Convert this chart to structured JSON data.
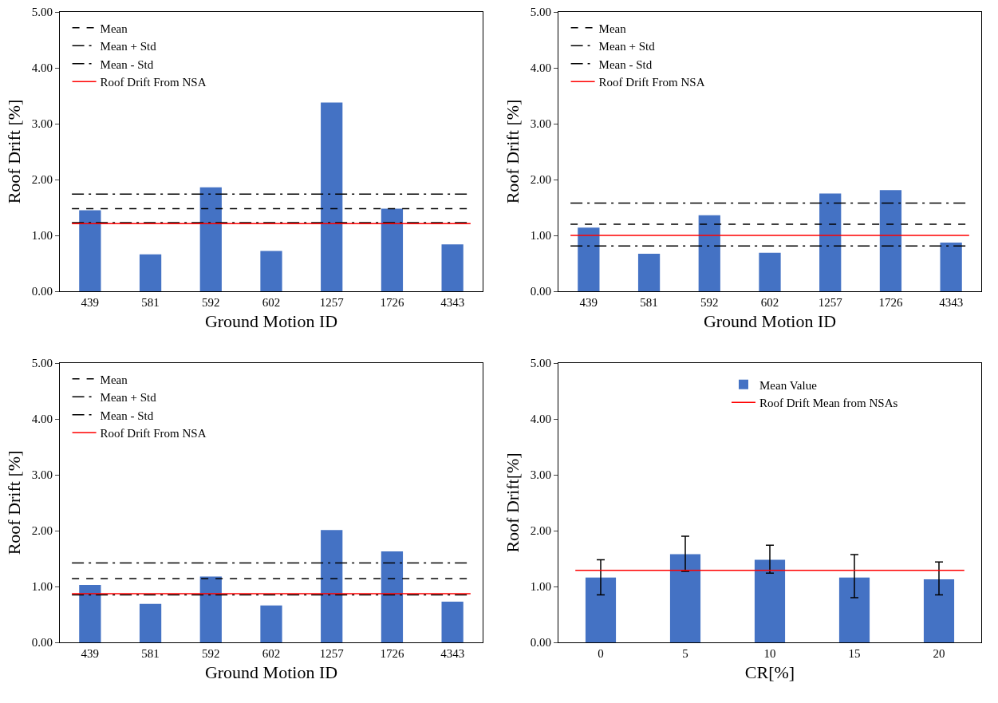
{
  "chart_data": [
    {
      "type": "bar",
      "xlabel": "Ground Motion ID",
      "ylabel": "Roof Drift [%]",
      "categories": [
        "439",
        "581",
        "592",
        "602",
        "1257",
        "1726",
        "4343"
      ],
      "values": [
        1.45,
        0.66,
        1.86,
        0.72,
        3.38,
        1.48,
        0.84
      ],
      "color": "#4472c4",
      "ylim": [
        0,
        5
      ],
      "yticks": [
        {
          "value": 0,
          "label": "0.00"
        },
        {
          "value": 1,
          "label": "1.00"
        },
        {
          "value": 2,
          "label": "2.00"
        },
        {
          "value": 3,
          "label": "3.00"
        },
        {
          "value": 4,
          "label": "4.00"
        },
        {
          "value": 5,
          "label": "5.00"
        }
      ],
      "grid": false,
      "legend": "top left",
      "ref_lines": [
        {
          "axis": "y",
          "value": 1.48,
          "label": "Mean",
          "color": "#000000",
          "line_style": "dashed"
        },
        {
          "axis": "y",
          "value": 1.74,
          "label": "Mean + Std",
          "color": "#000000",
          "line_style": "dashdot"
        },
        {
          "axis": "y",
          "value": 1.23,
          "label": "Mean - Std",
          "color": "#000000",
          "line_style": "dashdot"
        },
        {
          "axis": "y",
          "value": 1.21,
          "label": "Roof Drift From NSA",
          "color": "#ff0000",
          "line_style": "solid"
        }
      ]
    },
    {
      "type": "bar",
      "xlabel": "Ground Motion ID",
      "ylabel": "Roof Drift [%]",
      "categories": [
        "439",
        "581",
        "592",
        "602",
        "1257",
        "1726",
        "4343"
      ],
      "values": [
        1.14,
        0.67,
        1.36,
        0.69,
        1.75,
        1.81,
        0.87
      ],
      "color": "#4472c4",
      "ylim": [
        0,
        5
      ],
      "yticks": [
        {
          "value": 0,
          "label": "0.00"
        },
        {
          "value": 1,
          "label": "1.00"
        },
        {
          "value": 2,
          "label": "2.00"
        },
        {
          "value": 3,
          "label": "3.00"
        },
        {
          "value": 4,
          "label": "4.00"
        },
        {
          "value": 5,
          "label": "5.00"
        }
      ],
      "grid": false,
      "legend": "top left",
      "ref_lines": [
        {
          "axis": "y",
          "value": 1.2,
          "label": "Mean",
          "color": "#000000",
          "line_style": "dashed"
        },
        {
          "axis": "y",
          "value": 1.58,
          "label": "Mean + Std",
          "color": "#000000",
          "line_style": "dashdot"
        },
        {
          "axis": "y",
          "value": 0.81,
          "label": "Mean - Std",
          "color": "#000000",
          "line_style": "dashdot"
        },
        {
          "axis": "y",
          "value": 1.0,
          "label": "Roof Drift From NSA",
          "color": "#ff0000",
          "line_style": "solid"
        }
      ]
    },
    {
      "type": "bar",
      "xlabel": "Ground Motion ID",
      "ylabel": "Roof Drift [%]",
      "categories": [
        "439",
        "581",
        "592",
        "602",
        "1257",
        "1726",
        "4343"
      ],
      "values": [
        1.03,
        0.69,
        1.18,
        0.66,
        2.01,
        1.63,
        0.73
      ],
      "color": "#4472c4",
      "ylim": [
        0,
        5
      ],
      "yticks": [
        {
          "value": 0,
          "label": "0.00"
        },
        {
          "value": 1,
          "label": "1.00"
        },
        {
          "value": 2,
          "label": "2.00"
        },
        {
          "value": 3,
          "label": "3.00"
        },
        {
          "value": 4,
          "label": "4.00"
        },
        {
          "value": 5,
          "label": "5.00"
        }
      ],
      "grid": false,
      "legend": "top left",
      "ref_lines": [
        {
          "axis": "y",
          "value": 1.14,
          "label": "Mean",
          "color": "#000000",
          "line_style": "dashed"
        },
        {
          "axis": "y",
          "value": 1.42,
          "label": "Mean + Std",
          "color": "#000000",
          "line_style": "dashdot"
        },
        {
          "axis": "y",
          "value": 0.85,
          "label": "Mean - Std",
          "color": "#000000",
          "line_style": "dashdot"
        },
        {
          "axis": "y",
          "value": 0.87,
          "label": "Roof Drift From NSA",
          "color": "#ff0000",
          "line_style": "solid"
        }
      ]
    },
    {
      "type": "bar",
      "xlabel": "CR[%]",
      "ylabel": "Roof Drift[%]",
      "categories": [
        "0",
        "5",
        "10",
        "15",
        "20"
      ],
      "series": [
        {
          "name": "Mean Value",
          "color": "#4472c4",
          "values": [
            1.16,
            1.58,
            1.48,
            1.16,
            1.13
          ],
          "errors": [
            [
              0.85,
              1.48
            ],
            [
              1.27,
              1.9
            ],
            [
              1.24,
              1.74
            ],
            [
              0.8,
              1.57
            ],
            [
              0.85,
              1.44
            ]
          ]
        }
      ],
      "ylim": [
        0,
        5
      ],
      "yticks": [
        {
          "value": 0,
          "label": "0.00"
        },
        {
          "value": 1,
          "label": "1.00"
        },
        {
          "value": 2,
          "label": "2.00"
        },
        {
          "value": 3,
          "label": "3.00"
        },
        {
          "value": 4,
          "label": "4.00"
        },
        {
          "value": 5,
          "label": "5.00"
        }
      ],
      "grid": false,
      "legend": "top",
      "ref_lines": [
        {
          "axis": "y",
          "value": 1.29,
          "label": "Roof Drift Mean from NSAs",
          "color": "#ff0000",
          "line_style": "solid"
        }
      ]
    }
  ]
}
